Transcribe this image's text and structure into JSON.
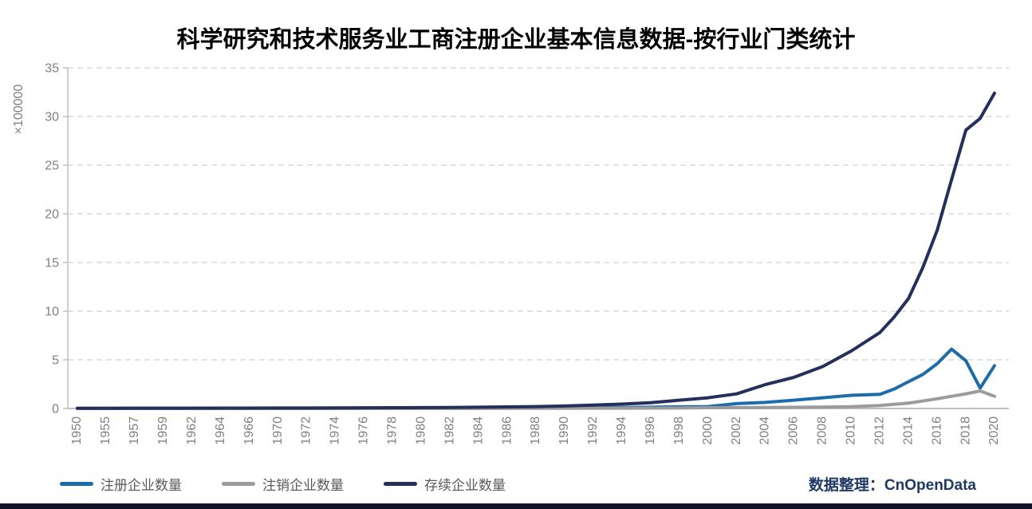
{
  "title": "科学研究和技术服务业工商注册企业基本信息数据-按行业门类统计",
  "credit": "数据整理：CnOpenData",
  "colors": {
    "registered_line": "#1B6CA8",
    "deregistered_line": "#9B9B9B",
    "surviving_line": "#252F5B",
    "credit_text": "#1F3864",
    "axis_text": "#808080",
    "legend_text": "#595959",
    "gridline": "#D8D8D8",
    "axis_line": "#C0C0C0",
    "bottom_bar": "#11162B"
  },
  "chart_data": {
    "type": "line",
    "title": "科学研究和技术服务业工商注册企业基本信息数据-按行业门类统计",
    "xlabel": "",
    "ylabel": "",
    "y_unit": "×100000",
    "ylim": [
      0,
      35
    ],
    "yticks": [
      0,
      5,
      10,
      15,
      20,
      25,
      30,
      35
    ],
    "grid": "horizontal-dashed",
    "legend_position": "bottom-left",
    "x_tick_labels": [
      "1950",
      "1955",
      "1957",
      "1959",
      "1962",
      "1964",
      "1966",
      "1970",
      "1972",
      "1974",
      "1976",
      "1978",
      "1980",
      "1982",
      "1984",
      "1986",
      "1988",
      "1990",
      "1992",
      "1994",
      "1996",
      "1998",
      "2000",
      "2002",
      "2004",
      "2006",
      "2008",
      "2010",
      "2012",
      "2014",
      "2016",
      "2018",
      "2020"
    ],
    "series": [
      {
        "name": "注册企业数量",
        "color": "#1B6CA8",
        "points": [
          [
            1950,
            0.01
          ],
          [
            1955,
            0.01
          ],
          [
            1957,
            0.01
          ],
          [
            1959,
            0.01
          ],
          [
            1962,
            0.01
          ],
          [
            1964,
            0.01
          ],
          [
            1966,
            0.01
          ],
          [
            1970,
            0.01
          ],
          [
            1972,
            0.01
          ],
          [
            1974,
            0.01
          ],
          [
            1976,
            0.02
          ],
          [
            1978,
            0.02
          ],
          [
            1980,
            0.02
          ],
          [
            1982,
            0.03
          ],
          [
            1984,
            0.03
          ],
          [
            1986,
            0.04
          ],
          [
            1988,
            0.05
          ],
          [
            1990,
            0.06
          ],
          [
            1992,
            0.08
          ],
          [
            1994,
            0.1
          ],
          [
            1996,
            0.13
          ],
          [
            1998,
            0.17
          ],
          [
            2000,
            0.2
          ],
          [
            2002,
            0.5
          ],
          [
            2004,
            0.62
          ],
          [
            2006,
            0.85
          ],
          [
            2008,
            1.1
          ],
          [
            2010,
            1.35
          ],
          [
            2012,
            1.45
          ],
          [
            2013,
            2.0
          ],
          [
            2014,
            2.75
          ],
          [
            2015,
            3.5
          ],
          [
            2016,
            4.6
          ],
          [
            2017,
            6.1
          ],
          [
            2018,
            4.9
          ],
          [
            2019,
            2.1
          ],
          [
            2020,
            4.4
          ]
        ]
      },
      {
        "name": "注销企业数量",
        "color": "#9B9B9B",
        "points": [
          [
            1950,
            0.01
          ],
          [
            1955,
            0.01
          ],
          [
            1957,
            0.01
          ],
          [
            1959,
            0.01
          ],
          [
            1962,
            0.01
          ],
          [
            1964,
            0.01
          ],
          [
            1966,
            0.01
          ],
          [
            1970,
            0.01
          ],
          [
            1972,
            0.01
          ],
          [
            1974,
            0.01
          ],
          [
            1976,
            0.01
          ],
          [
            1978,
            0.01
          ],
          [
            1980,
            0.01
          ],
          [
            1982,
            0.01
          ],
          [
            1984,
            0.01
          ],
          [
            1986,
            0.01
          ],
          [
            1988,
            0.02
          ],
          [
            1990,
            0.02
          ],
          [
            1992,
            0.03
          ],
          [
            1994,
            0.03
          ],
          [
            1996,
            0.04
          ],
          [
            1998,
            0.05
          ],
          [
            2000,
            0.08
          ],
          [
            2002,
            0.09
          ],
          [
            2004,
            0.1
          ],
          [
            2006,
            0.12
          ],
          [
            2008,
            0.15
          ],
          [
            2010,
            0.18
          ],
          [
            2012,
            0.3
          ],
          [
            2014,
            0.55
          ],
          [
            2016,
            1.0
          ],
          [
            2018,
            1.5
          ],
          [
            2019,
            1.8
          ],
          [
            2020,
            1.25
          ]
        ]
      },
      {
        "name": "存续企业数量",
        "color": "#252F5B",
        "points": [
          [
            1950,
            0.02
          ],
          [
            1955,
            0.02
          ],
          [
            1957,
            0.03
          ],
          [
            1959,
            0.03
          ],
          [
            1962,
            0.03
          ],
          [
            1964,
            0.04
          ],
          [
            1966,
            0.04
          ],
          [
            1970,
            0.05
          ],
          [
            1972,
            0.05
          ],
          [
            1974,
            0.06
          ],
          [
            1976,
            0.07
          ],
          [
            1978,
            0.08
          ],
          [
            1980,
            0.09
          ],
          [
            1982,
            0.11
          ],
          [
            1984,
            0.13
          ],
          [
            1986,
            0.16
          ],
          [
            1988,
            0.2
          ],
          [
            1990,
            0.25
          ],
          [
            1992,
            0.35
          ],
          [
            1994,
            0.45
          ],
          [
            1996,
            0.6
          ],
          [
            1998,
            0.85
          ],
          [
            2000,
            1.1
          ],
          [
            2002,
            1.5
          ],
          [
            2004,
            2.45
          ],
          [
            2006,
            3.2
          ],
          [
            2008,
            4.3
          ],
          [
            2010,
            5.9
          ],
          [
            2012,
            7.8
          ],
          [
            2013,
            9.4
          ],
          [
            2014,
            11.3
          ],
          [
            2015,
            14.5
          ],
          [
            2016,
            18.3
          ],
          [
            2017,
            23.5
          ],
          [
            2018,
            28.6
          ],
          [
            2019,
            29.8
          ],
          [
            2020,
            32.4
          ]
        ]
      }
    ]
  }
}
